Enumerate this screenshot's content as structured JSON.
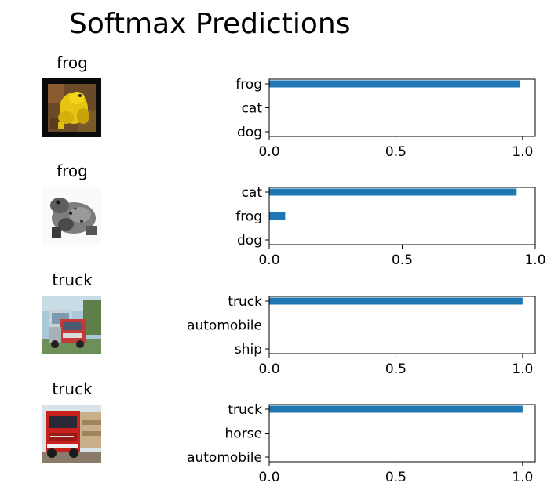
{
  "title": "Softmax Predictions",
  "rows": [
    {
      "image_label": "frog",
      "image_desc": "yellow frog on dark background",
      "chart_data": {
        "type": "bar",
        "orientation": "horizontal",
        "categories": [
          "frog",
          "cat",
          "dog"
        ],
        "values": [
          0.99,
          0.0,
          0.0
        ],
        "xlim": [
          0,
          1.05
        ],
        "xticks": [
          "0.0",
          "0.5",
          "1.0"
        ],
        "bar_color": "#1f77b4"
      }
    },
    {
      "image_label": "frog",
      "image_desc": "grayscale toad",
      "chart_data": {
        "type": "bar",
        "orientation": "horizontal",
        "categories": [
          "cat",
          "frog",
          "dog"
        ],
        "values": [
          0.93,
          0.06,
          0.0
        ],
        "xlim": [
          0,
          1.0
        ],
        "xticks": [
          "0.0",
          "0.5",
          "1.0"
        ],
        "bar_color": "#1f77b4"
      }
    },
    {
      "image_label": "truck",
      "image_desc": "red truck with trees",
      "chart_data": {
        "type": "bar",
        "orientation": "horizontal",
        "categories": [
          "truck",
          "automobile",
          "ship"
        ],
        "values": [
          1.0,
          0.0,
          0.0
        ],
        "xlim": [
          0,
          1.05
        ],
        "xticks": [
          "0.0",
          "0.5",
          "1.0"
        ],
        "bar_color": "#1f77b4"
      }
    },
    {
      "image_label": "truck",
      "image_desc": "red truck front view",
      "chart_data": {
        "type": "bar",
        "orientation": "horizontal",
        "categories": [
          "truck",
          "horse",
          "automobile"
        ],
        "values": [
          1.0,
          0.0,
          0.0
        ],
        "xlim": [
          0,
          1.05
        ],
        "xticks": [
          "0.0",
          "0.5",
          "1.0"
        ],
        "bar_color": "#1f77b4"
      }
    }
  ]
}
